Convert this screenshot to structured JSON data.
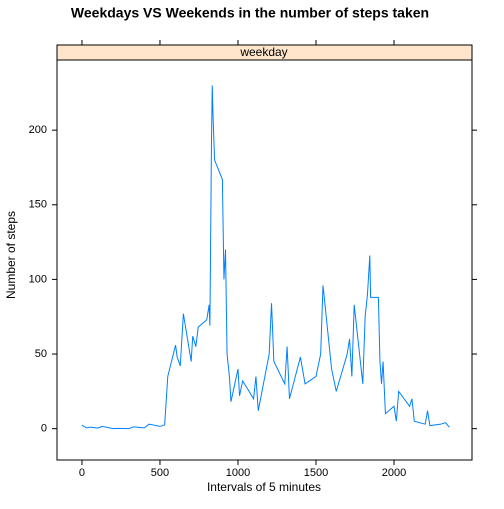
{
  "chart_data": {
    "type": "line",
    "title": "Weekdays VS Weekends in the number of steps taken",
    "strip": "weekday",
    "xlabel": "Intervals of 5 minutes",
    "ylabel": "Number of steps",
    "x": [
      0,
      30,
      55,
      100,
      130,
      200,
      230,
      300,
      330,
      400,
      430,
      500,
      530,
      550,
      600,
      610,
      630,
      650,
      700,
      710,
      730,
      745,
      800,
      815,
      820,
      830,
      835,
      840,
      850,
      900,
      910,
      920,
      930,
      945,
      955,
      1000,
      1010,
      1030,
      1100,
      1115,
      1130,
      1200,
      1215,
      1230,
      1300,
      1315,
      1330,
      1400,
      1430,
      1500,
      1530,
      1545,
      1600,
      1630,
      1700,
      1715,
      1730,
      1745,
      1800,
      1815,
      1830,
      1845,
      1850,
      1900,
      1910,
      1920,
      1930,
      1945,
      2000,
      2015,
      2030,
      2100,
      2115,
      2130,
      2200,
      2215,
      2230,
      2300,
      2330,
      2355
    ],
    "series": [
      {
        "name": "weekday",
        "color": "#0080ff",
        "values": [
          2.3,
          0.5,
          1,
          0.4,
          1.5,
          0,
          0.2,
          0,
          1.2,
          0.5,
          3,
          1.5,
          2.5,
          35,
          56,
          48,
          42,
          77,
          45,
          62,
          55,
          68,
          73,
          83,
          69,
          190,
          230,
          210,
          180,
          167,
          100,
          120,
          50,
          35,
          18,
          40,
          22,
          32,
          20,
          35,
          12,
          50,
          84,
          45,
          30,
          55,
          20,
          48,
          30,
          35,
          50,
          96,
          40,
          25,
          50,
          60,
          35,
          83,
          30,
          75,
          90,
          116,
          88,
          88,
          45,
          30,
          45,
          10,
          15,
          5,
          25,
          15,
          20,
          5,
          3,
          12,
          2,
          3,
          4,
          1
        ]
      }
    ],
    "xlim": [
      -160,
      2500
    ],
    "ylim": [
      -21,
      247
    ],
    "xticks": [
      0,
      500,
      1000,
      1500,
      2000
    ],
    "yticks": [
      0,
      50,
      100,
      150,
      200
    ]
  }
}
